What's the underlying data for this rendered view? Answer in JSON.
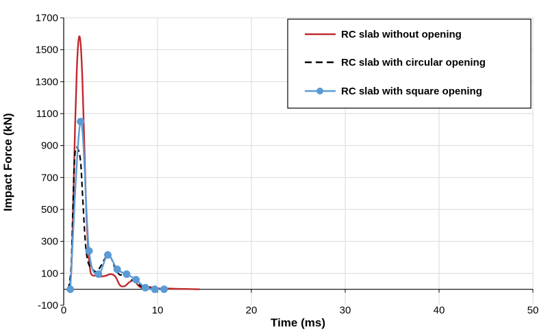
{
  "chart_data": {
    "type": "line",
    "title": "",
    "xlabel": "Time (ms)",
    "ylabel": "Impact Force (kN)",
    "xlim": [
      0,
      50
    ],
    "ylim": [
      -100,
      1700
    ],
    "xticks": [
      0,
      10,
      20,
      30,
      40,
      50
    ],
    "yticks": [
      -100,
      100,
      300,
      500,
      700,
      900,
      1100,
      1300,
      1500,
      1700
    ],
    "grid": true,
    "legend_position": "top-right",
    "series": [
      {
        "name": "RC slab without opening",
        "color": "#c0282d",
        "style": "solid",
        "markers": false,
        "x": [
          0.5,
          0.8,
          1.0,
          1.2,
          1.4,
          1.6,
          1.8,
          2.0,
          2.2,
          2.4,
          2.6,
          2.8,
          3.0,
          3.5,
          4.0,
          4.5,
          5.0,
          5.5,
          6.0,
          6.5,
          7.0,
          7.5,
          8.0,
          8.5,
          9.0,
          9.5,
          10.0,
          11.0,
          12.0,
          13.0,
          14.5
        ],
        "y": [
          0,
          100,
          500,
          1000,
          1380,
          1570,
          1540,
          1300,
          900,
          500,
          260,
          130,
          90,
          85,
          80,
          85,
          95,
          80,
          25,
          20,
          45,
          55,
          20,
          5,
          15,
          10,
          5,
          5,
          3,
          2,
          0
        ]
      },
      {
        "name": "RC slab with circular opening",
        "color": "#000000",
        "style": "dashed",
        "markers": false,
        "x": [
          0.5,
          0.8,
          1.0,
          1.2,
          1.5,
          1.8,
          2.0,
          2.3,
          2.6,
          3.0,
          3.5,
          4.0,
          4.5,
          5.0,
          5.5,
          6.0,
          6.5,
          7.0,
          7.5,
          8.0,
          8.5,
          9.0,
          9.5,
          10.0,
          10.6
        ],
        "y": [
          0,
          150,
          550,
          850,
          880,
          800,
          600,
          300,
          170,
          130,
          110,
          150,
          200,
          200,
          130,
          90,
          100,
          70,
          50,
          30,
          10,
          5,
          5,
          0,
          0
        ]
      },
      {
        "name": "RC slab with square opening",
        "color": "#5b9bd5",
        "style": "solid",
        "markers": true,
        "x": [
          0.7,
          1.8,
          2.7,
          3.7,
          4.7,
          5.7,
          6.7,
          7.7,
          8.7,
          9.7,
          10.7
        ],
        "y": [
          0,
          1050,
          240,
          95,
          215,
          125,
          95,
          60,
          10,
          0,
          0
        ]
      }
    ]
  }
}
